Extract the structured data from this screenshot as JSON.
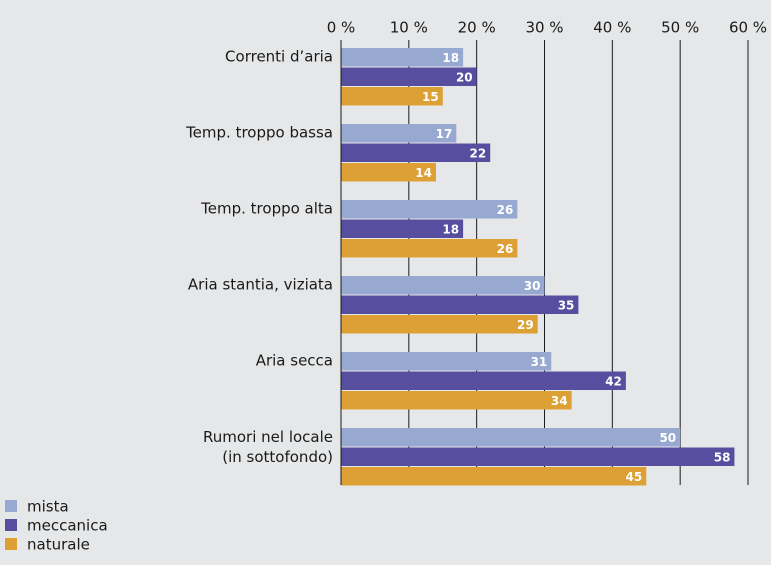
{
  "chart_data": {
    "type": "hbar",
    "categories": [
      "Correnti d’aria",
      "Temp. troppo bassa",
      "Temp. troppo alta",
      "Aria stantia, viziata",
      "Aria secca",
      "Rumori nel locale\n(in sottofondo)"
    ],
    "series": [
      {
        "name": "mista",
        "color": "#97a9d1",
        "values": [
          18,
          17,
          26,
          30,
          31,
          50
        ]
      },
      {
        "name": "meccanica",
        "color": "#574ea0",
        "values": [
          20,
          22,
          18,
          35,
          42,
          58
        ]
      },
      {
        "name": "naturale",
        "color": "#dca034",
        "values": [
          15,
          14,
          26,
          29,
          34,
          45
        ]
      }
    ],
    "xlim": [
      0,
      60
    ],
    "xticks": [
      {
        "value": 0,
        "label": "0 %"
      },
      {
        "value": 10,
        "label": "10 %"
      },
      {
        "value": 20,
        "label": "20 %"
      },
      {
        "value": 30,
        "label": "30 %"
      },
      {
        "value": 40,
        "label": "40 %"
      },
      {
        "value": 50,
        "label": "50 %"
      },
      {
        "value": 60,
        "label": "60 %"
      }
    ],
    "grid": true,
    "legend": "bottom-left"
  }
}
